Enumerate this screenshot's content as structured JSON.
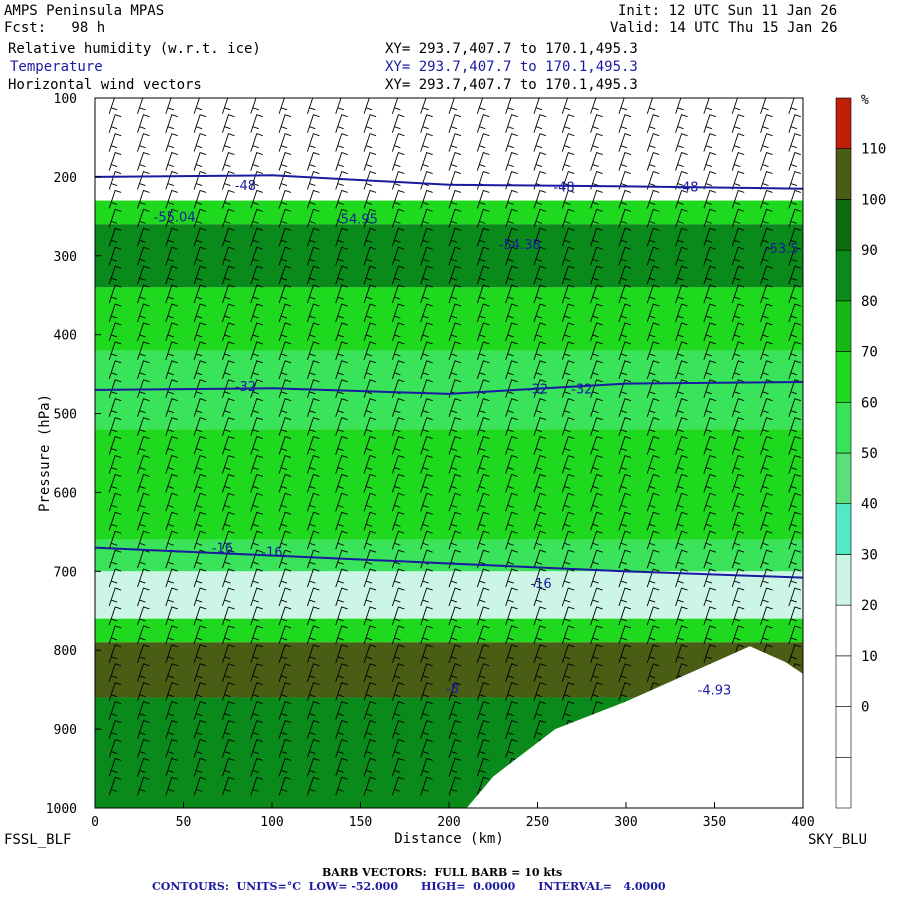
{
  "header": {
    "model": "AMPS Peninsula MPAS",
    "fcst": "Fcst:   98 h",
    "init": "Init: 12 UTC Sun 11 Jan 26",
    "valid": "Valid: 14 UTC Thu 15 Jan 26",
    "fields": [
      {
        "label": "Relative humidity (w.r.t. ice)",
        "xy": "XY= 293.7,407.7 to 170.1,495.3",
        "color": "#000000"
      },
      {
        "label": "Temperature",
        "xy": "XY= 293.7,407.7 to 170.1,495.3",
        "color": "#1a1aa0"
      },
      {
        "label": "Horizontal wind vectors",
        "xy": "XY= 293.7,407.7 to 170.1,495.3",
        "color": "#000000"
      }
    ]
  },
  "corners": {
    "left": "FSSL_BLF",
    "right": "SKY_BLU"
  },
  "footer": {
    "barb": "BARB VECTORS:  FULL BARB = 10 kts",
    "contours": "CONTOURS:  UNITS=°C  LOW= -52.000      HIGH=  0.0000      INTERVAL=   4.0000"
  },
  "chart_data": {
    "type": "heatmap",
    "xlabel": "Distance (km)",
    "ylabel": "Pressure (hPa)",
    "xlim": [
      0,
      400
    ],
    "ylim": [
      1000,
      100
    ],
    "x_ticks": [
      0,
      50,
      100,
      150,
      200,
      250,
      300,
      350,
      400
    ],
    "y_ticks": [
      100,
      200,
      300,
      400,
      500,
      600,
      700,
      800,
      900,
      1000
    ],
    "colorbar": {
      "unit": "%",
      "tick_labels": [
        "0",
        "10",
        "20",
        "30",
        "40",
        "50",
        "60",
        "70",
        "80",
        "90",
        "100",
        "110"
      ],
      "levels": [
        -10,
        0,
        10,
        20,
        30,
        40,
        50,
        60,
        70,
        80,
        90,
        100,
        110,
        120
      ],
      "colors": [
        "#ffffff",
        "#ffffff",
        "#ffffff",
        "#ffffff",
        "#ccf5e6",
        "#55e8c8",
        "#5ae07a",
        "#39e35a",
        "#1fd91f",
        "#16b816",
        "#0a8a1a",
        "#0f6a0f",
        "#4a5d14",
        "#c0200a"
      ]
    },
    "rh_bands": [
      {
        "p_top": 100,
        "p_bot": 230,
        "rh": 5
      },
      {
        "p_top": 230,
        "p_bot": 260,
        "rh": 75
      },
      {
        "p_top": 260,
        "p_bot": 340,
        "rh": 95
      },
      {
        "p_top": 340,
        "p_bot": 420,
        "rh": 75
      },
      {
        "p_top": 420,
        "p_bot": 520,
        "rh": 65
      },
      {
        "p_top": 520,
        "p_bot": 660,
        "rh": 75
      },
      {
        "p_top": 660,
        "p_bot": 700,
        "rh": 60
      },
      {
        "p_top": 700,
        "p_bot": 760,
        "rh": 35
      },
      {
        "p_top": 760,
        "p_bot": 790,
        "rh": 75
      },
      {
        "p_top": 790,
        "p_bot": 860,
        "rh": 115
      },
      {
        "p_top": 860,
        "p_bot": 1000,
        "rh": 95
      }
    ],
    "temperature_isotherms": [
      {
        "value": -48,
        "points": [
          [
            0,
            200
          ],
          [
            100,
            198
          ],
          [
            200,
            210
          ],
          [
            300,
            212
          ],
          [
            400,
            215
          ]
        ]
      },
      {
        "value": -32,
        "points": [
          [
            0,
            470
          ],
          [
            100,
            468
          ],
          [
            200,
            475
          ],
          [
            300,
            462
          ],
          [
            400,
            460
          ]
        ]
      },
      {
        "value": -16,
        "points": [
          [
            0,
            670
          ],
          [
            100,
            680
          ],
          [
            200,
            690
          ],
          [
            300,
            700
          ],
          [
            400,
            708
          ]
        ]
      }
    ],
    "contour_labels": [
      {
        "text": "-48",
        "x": 85,
        "p": 210
      },
      {
        "text": "-48",
        "x": 265,
        "p": 212
      },
      {
        "text": "-48",
        "x": 335,
        "p": 212
      },
      {
        "text": "-55.04",
        "x": 45,
        "p": 250
      },
      {
        "text": "-54.95",
        "x": 148,
        "p": 253
      },
      {
        "text": "-54.38",
        "x": 240,
        "p": 285
      },
      {
        "text": "-53.5",
        "x": 388,
        "p": 290
      },
      {
        "text": "-32",
        "x": 85,
        "p": 465
      },
      {
        "text": "-32",
        "x": 250,
        "p": 468
      },
      {
        "text": "-32",
        "x": 275,
        "p": 468
      },
      {
        "text": "-16",
        "x": 72,
        "p": 670
      },
      {
        "text": "-16",
        "x": 100,
        "p": 675
      },
      {
        "text": "-16",
        "x": 252,
        "p": 715
      },
      {
        "text": "-4.93",
        "x": 350,
        "p": 850
      },
      {
        "text": "-8",
        "x": 202,
        "p": 848
      }
    ],
    "terrain": [
      [
        0,
        1000
      ],
      [
        210,
        1000
      ],
      [
        225,
        960
      ],
      [
        260,
        900
      ],
      [
        300,
        865
      ],
      [
        350,
        815
      ],
      [
        370,
        795
      ],
      [
        390,
        815
      ],
      [
        400,
        830
      ],
      [
        400,
        1000
      ]
    ]
  }
}
